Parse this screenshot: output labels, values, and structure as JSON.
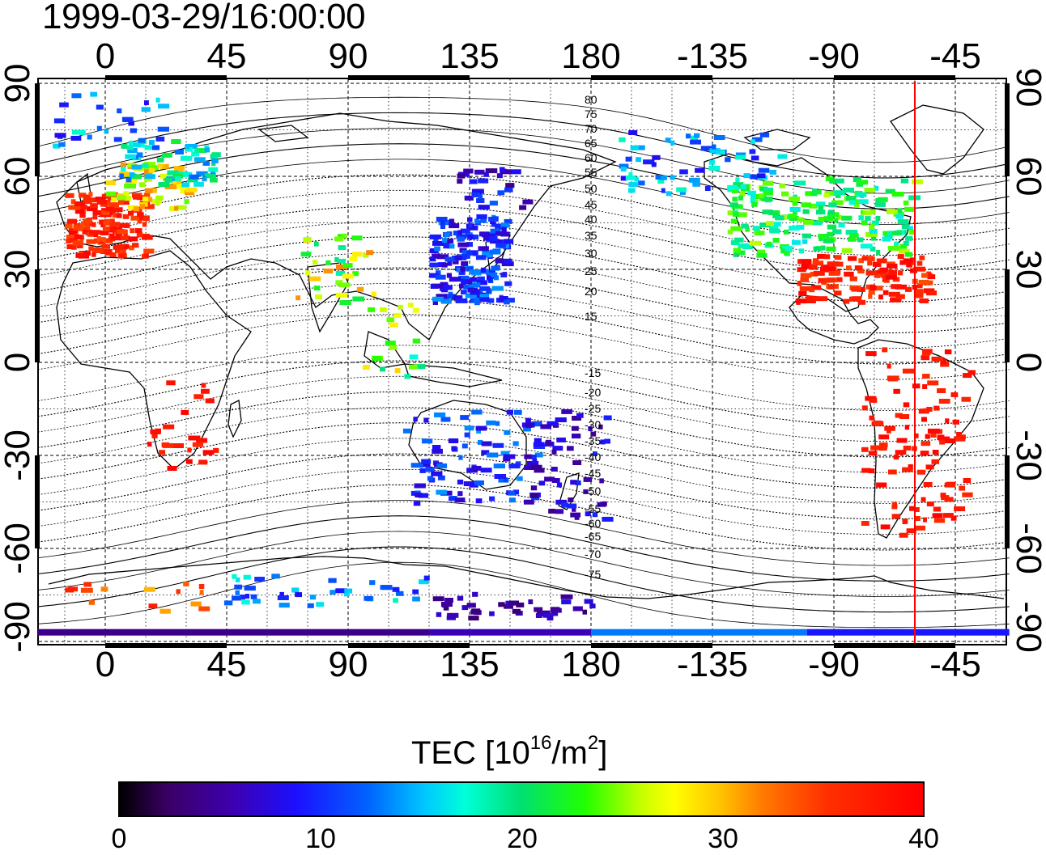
{
  "title": "1999-03-29/16:00:00",
  "top_axis_ticks": [
    "0",
    "45",
    "90",
    "135",
    "180",
    "-135",
    "-90",
    "-45"
  ],
  "bottom_axis_ticks": [
    "0",
    "45",
    "90",
    "135",
    "180",
    "-135",
    "-90",
    "-45"
  ],
  "left_axis_ticks": [
    "90",
    "60",
    "30",
    "0",
    "-30",
    "-60",
    "-90"
  ],
  "right_axis_ticks": [
    "90",
    "60",
    "30",
    "0",
    "-30",
    "-60",
    "-90"
  ],
  "contour_labels_north": [
    "80",
    "75",
    "70",
    "65",
    "60",
    "55",
    "50",
    "45",
    "40",
    "35",
    "30",
    "25",
    "20",
    "15"
  ],
  "contour_labels_south": [
    "-15",
    "-20",
    "-25",
    "-30",
    "-35",
    "-40",
    "-45",
    "-50",
    "-55",
    "-60",
    "-65",
    "-70",
    "-75"
  ],
  "colorbar": {
    "label_main": "TEC  [10",
    "label_exp1": "16",
    "label_mid": "/m",
    "label_exp2": "2",
    "label_end": "]",
    "ticks": [
      "0",
      "10",
      "20",
      "30",
      "40"
    ],
    "range": [
      0,
      40
    ]
  },
  "colors": {
    "meridian_line": "#ff0000",
    "coast": "#000000",
    "grid": "#000000"
  },
  "map_extent": {
    "lon_start": -25,
    "lon_end": 335,
    "lat_min": -90,
    "lat_max": 90
  },
  "marker_longitude": -60
}
